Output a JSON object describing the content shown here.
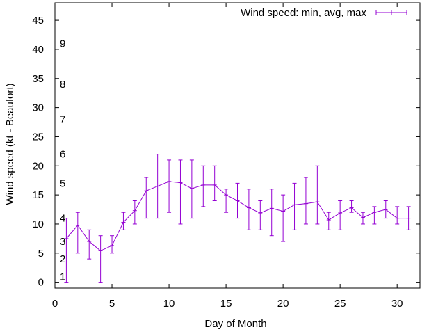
{
  "chart_data": {
    "type": "line",
    "title": "",
    "xlabel": "Day of Month",
    "ylabel": "Wind speed (kt - Beaufort)",
    "xlim": [
      0,
      32
    ],
    "ylim": [
      -1,
      48
    ],
    "x_ticks": [
      "0",
      "5",
      "10",
      "15",
      "20",
      "25",
      "30"
    ],
    "y_ticks": [
      "0",
      "5",
      "10",
      "15",
      "20",
      "25",
      "30",
      "35",
      "40",
      "45"
    ],
    "beaufort_labels": [
      {
        "label": "1",
        "y": 1
      },
      {
        "label": "2",
        "y": 4
      },
      {
        "label": "3",
        "y": 7
      },
      {
        "label": "4",
        "y": 11
      },
      {
        "label": "5",
        "y": 17
      },
      {
        "label": "6",
        "y": 22
      },
      {
        "label": "7",
        "y": 28
      },
      {
        "label": "8",
        "y": 34
      },
      {
        "label": "9",
        "y": 41
      }
    ],
    "grid": false,
    "legend_position": "top-right",
    "series": [
      {
        "name": "Wind speed: min, avg, max",
        "color": "#9400d3",
        "x": [
          1,
          2,
          3,
          4,
          5,
          6,
          7,
          8,
          9,
          10,
          11,
          12,
          13,
          14,
          15,
          16,
          17,
          18,
          19,
          20,
          21,
          22,
          23,
          24,
          25,
          26,
          27,
          28,
          29,
          30,
          31
        ],
        "avg": [
          7.5,
          9.8,
          7.0,
          5.4,
          6.3,
          10.3,
          12.3,
          15.7,
          16.5,
          17.3,
          17.1,
          16.1,
          16.7,
          16.7,
          15.0,
          14.0,
          12.8,
          11.9,
          12.7,
          12.2,
          13.3,
          13.5,
          13.8,
          10.7,
          11.9,
          12.8,
          11.1,
          12.0,
          12.5,
          11.0,
          11.0
        ],
        "min": [
          0,
          5,
          4,
          0,
          5,
          9,
          10,
          11,
          11,
          12,
          10,
          11,
          13,
          14,
          12,
          11,
          9,
          9,
          8,
          7,
          9,
          10,
          10,
          9,
          9,
          12,
          10,
          10,
          11,
          10,
          9
        ],
        "max": [
          11,
          12,
          9,
          8,
          8,
          12,
          14,
          18,
          22,
          21,
          21,
          21,
          20,
          20,
          16,
          17,
          16,
          14,
          16,
          15,
          17,
          18,
          20,
          12,
          14,
          14,
          12,
          13,
          14,
          13,
          13
        ]
      }
    ]
  }
}
